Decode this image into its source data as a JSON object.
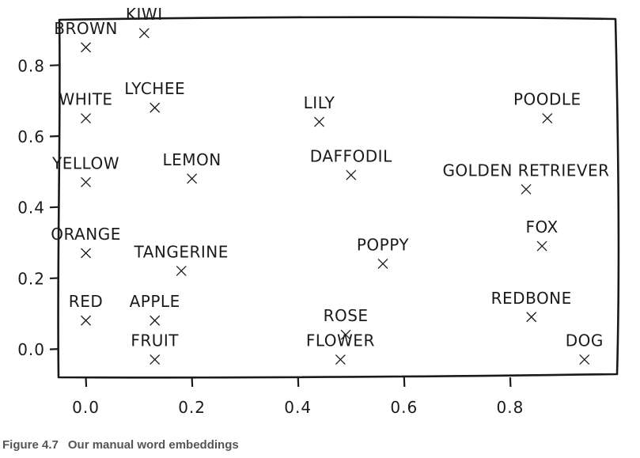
{
  "chart_data": {
    "type": "scatter",
    "title": "",
    "xlabel": "",
    "ylabel": "",
    "xlim": [
      -0.05,
      1.0
    ],
    "ylim": [
      -0.08,
      0.93
    ],
    "x_ticks": [
      0.0,
      0.2,
      0.4,
      0.6,
      0.8
    ],
    "x_tick_labels": [
      "0.0",
      "0.2",
      "0.4",
      "0.6",
      "0.8"
    ],
    "y_ticks": [
      0.0,
      0.2,
      0.4,
      0.6,
      0.8
    ],
    "y_tick_labels": [
      "0.0",
      "0.2",
      "0.4",
      "0.6",
      "0.8"
    ],
    "grid": false,
    "points": [
      {
        "label": "BROWN",
        "x": 0.0,
        "y": 0.85
      },
      {
        "label": "KIWI",
        "x": 0.11,
        "y": 0.89
      },
      {
        "label": "WHITE",
        "x": 0.0,
        "y": 0.65
      },
      {
        "label": "LYCHEE",
        "x": 0.13,
        "y": 0.68
      },
      {
        "label": "LILY",
        "x": 0.44,
        "y": 0.64
      },
      {
        "label": "POODLE",
        "x": 0.87,
        "y": 0.65
      },
      {
        "label": "YELLOW",
        "x": 0.0,
        "y": 0.47
      },
      {
        "label": "LEMON",
        "x": 0.2,
        "y": 0.48
      },
      {
        "label": "DAFFODIL",
        "x": 0.5,
        "y": 0.49
      },
      {
        "label": "GOLDEN RETRIEVER",
        "x": 0.83,
        "y": 0.45
      },
      {
        "label": "FOX",
        "x": 0.86,
        "y": 0.29
      },
      {
        "label": "ORANGE",
        "x": 0.0,
        "y": 0.27
      },
      {
        "label": "TANGERINE",
        "x": 0.18,
        "y": 0.22
      },
      {
        "label": "POPPY",
        "x": 0.56,
        "y": 0.24
      },
      {
        "label": "RED",
        "x": 0.0,
        "y": 0.08
      },
      {
        "label": "APPLE",
        "x": 0.13,
        "y": 0.08
      },
      {
        "label": "ROSE",
        "x": 0.49,
        "y": 0.04
      },
      {
        "label": "REDBONE",
        "x": 0.84,
        "y": 0.09
      },
      {
        "label": "FRUIT",
        "x": 0.13,
        "y": -0.03
      },
      {
        "label": "FLOWER",
        "x": 0.48,
        "y": -0.03
      },
      {
        "label": "DOG",
        "x": 0.94,
        "y": -0.03
      }
    ]
  },
  "caption": {
    "number": "Figure 4.7",
    "text": "Our manual word embeddings"
  },
  "colors": {
    "ink": "#1a1a1a",
    "caption": "#555555",
    "background": "#ffffff"
  }
}
